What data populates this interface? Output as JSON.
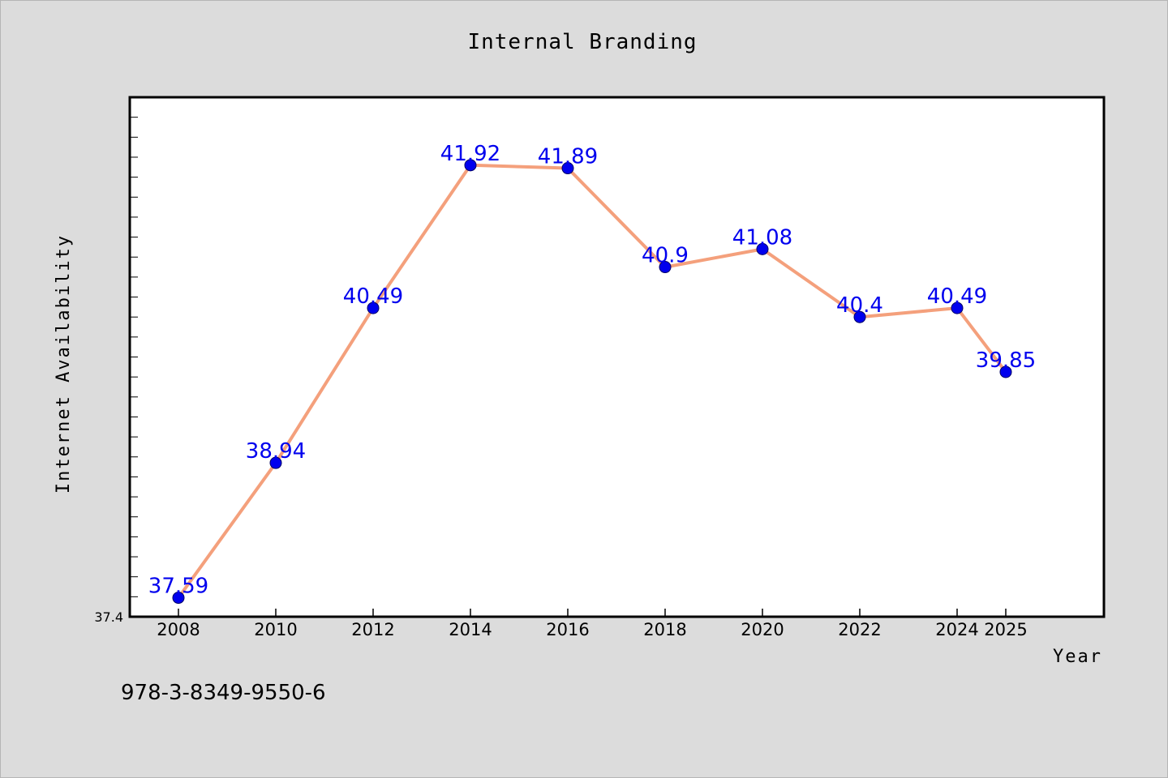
{
  "chart_data": {
    "type": "line",
    "title": "Internal Branding",
    "xlabel": "Year",
    "ylabel": "Internet Availability",
    "categories": [
      "2008",
      "2010",
      "2012",
      "2014",
      "2016",
      "2018",
      "2020",
      "2022",
      "2024",
      "2025"
    ],
    "series": [
      {
        "values": [
          37.59,
          38.94,
          40.49,
          41.92,
          41.89,
          40.9,
          41.08,
          40.4,
          40.49,
          39.85
        ],
        "data_labels": [
          "37.59",
          "38.94",
          "40.49",
          "41.92",
          "41.89",
          "40.9",
          "41.08",
          "40.4",
          "40.49",
          "39.85"
        ]
      }
    ],
    "y_min_label": "37.4",
    "ylim": [
      37.4,
      42.6
    ],
    "grid": false,
    "legend": "none",
    "colors": {
      "line": "#f4a07c",
      "marker": "#0000ee",
      "data_label": "#0000ee",
      "plot_background": "#ffffff",
      "figure_background": "#dcdcdc"
    }
  },
  "footer": {
    "isbn": "978-3-8349-9550-6"
  }
}
